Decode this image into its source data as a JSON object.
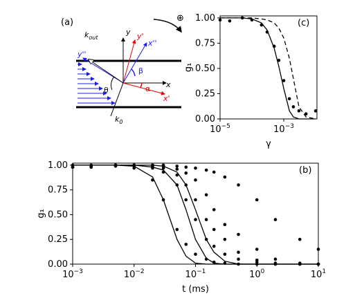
{
  "diagram": {
    "labels": {
      "panel": "(a)",
      "k_out": "k",
      "k_out_sub": "out",
      "y": "y",
      "y1": "y'",
      "y2": "y''",
      "x": "x",
      "x1": "x'",
      "x2": "x''",
      "alpha": "α",
      "beta": "β",
      "theta": "θ",
      "k_in": "k",
      "k_in_sub": "0",
      "oplus": "⊕"
    }
  },
  "chart_data": [
    {
      "type": "scatter-line",
      "panel": "(c)",
      "ylabel": "g₁",
      "xlabel": "γ",
      "xlog": true,
      "xlim": [
        1e-05,
        0.011
      ],
      "ylim": [
        0,
        1.02
      ],
      "xticks": [
        {
          "value": 1e-05,
          "label": "10",
          "exponent": "−5"
        },
        {
          "value": 0.001,
          "label": "10",
          "exponent": "−3"
        }
      ],
      "yticks": [
        {
          "value": 0,
          "label": "0.00"
        },
        {
          "value": 0.25,
          "label": "0.25"
        },
        {
          "value": 0.5,
          "label": "0.50"
        },
        {
          "value": 0.75,
          "label": "0.75"
        },
        {
          "value": 1,
          "label": "1.00"
        }
      ],
      "x": [
        1e-05,
        2e-05,
        5e-05,
        0.0001,
        0.0002,
        0.0003,
        0.0005,
        0.0007,
        0.001,
        0.0015,
        0.002,
        0.003,
        0.005,
        0.01
      ],
      "series": [
        {
          "mode": "markers",
          "color": "#000000",
          "values": [
            0.98,
            0.97,
            1.0,
            0.98,
            0.93,
            0.86,
            0.72,
            0.58,
            0.38,
            0.2,
            0.12,
            0.08,
            0.05,
            0.08
          ]
        },
        {
          "mode": "line",
          "linestyle": "solid",
          "color": "#000000",
          "values": [
            1,
            1,
            1,
            0.99,
            0.95,
            0.88,
            0.7,
            0.52,
            0.3,
            0.08,
            0.02,
            0,
            0,
            0
          ]
        },
        {
          "mode": "line",
          "linestyle": "dashed",
          "color": "#000000",
          "values": [
            1,
            1,
            1,
            1,
            0.99,
            0.98,
            0.95,
            0.9,
            0.8,
            0.6,
            0.4,
            0.12,
            0.02,
            0
          ]
        }
      ]
    },
    {
      "type": "scatter-line",
      "panel": "(b)",
      "ylabel": "g₁",
      "xlabel": "t (ms)",
      "xlog": true,
      "xlim": [
        0.001,
        10
      ],
      "ylim": [
        0,
        1.02
      ],
      "xticks": [
        {
          "value": 0.001,
          "label": "10",
          "exponent": "−3"
        },
        {
          "value": 0.01,
          "label": "10",
          "exponent": "−2"
        },
        {
          "value": 0.1,
          "label": "10",
          "exponent": "−1"
        },
        {
          "value": 1,
          "label": "10",
          "exponent": "0"
        },
        {
          "value": 10,
          "label": "10",
          "exponent": "1"
        }
      ],
      "yticks": [
        {
          "value": 0,
          "label": "0.00"
        },
        {
          "value": 0.25,
          "label": "0.25"
        },
        {
          "value": 0.5,
          "label": "0.50"
        },
        {
          "value": 0.75,
          "label": "0.75"
        },
        {
          "value": 1,
          "label": "1.00"
        }
      ],
      "x": [
        0.001,
        0.002,
        0.005,
        0.01,
        0.02,
        0.03,
        0.05,
        0.07,
        0.1,
        0.15,
        0.2,
        0.3,
        0.5,
        1,
        2,
        5,
        10
      ],
      "series": [
        {
          "mode": "markers",
          "color": "#000000",
          "values": [
            0.98,
            0.98,
            0.99,
            0.97,
            0.85,
            0.65,
            0.35,
            0.2,
            0.1,
            0.05,
            0.02,
            0.01,
            0,
            0,
            0,
            0,
            0
          ]
        },
        {
          "mode": "line",
          "linestyle": "solid",
          "color": "#000000",
          "values": [
            1,
            1,
            1,
            0.99,
            0.88,
            0.65,
            0.25,
            0.08,
            0.01,
            0,
            0,
            0,
            0,
            0,
            0,
            0,
            0
          ]
        },
        {
          "mode": "markers",
          "color": "#000000",
          "values": [
            0.98,
            0.99,
            1.0,
            0.99,
            0.97,
            0.93,
            0.8,
            0.65,
            0.45,
            0.25,
            0.18,
            0.1,
            0.05,
            0.02,
            0,
            0,
            0
          ]
        },
        {
          "mode": "line",
          "linestyle": "solid",
          "color": "#000000",
          "values": [
            1,
            1,
            1,
            1,
            0.98,
            0.95,
            0.8,
            0.55,
            0.25,
            0.06,
            0.01,
            0,
            0,
            0,
            0,
            0,
            0
          ]
        },
        {
          "mode": "markers",
          "color": "#000000",
          "values": [
            0.98,
            0.98,
            1,
            1,
            0.99,
            0.97,
            0.9,
            0.8,
            0.65,
            0.45,
            0.35,
            0.25,
            0.12,
            0.04,
            0.01,
            0,
            0
          ]
        },
        {
          "mode": "line",
          "linestyle": "solid",
          "color": "#000000",
          "values": [
            1,
            1,
            1,
            1,
            1,
            0.99,
            0.93,
            0.8,
            0.55,
            0.25,
            0.12,
            0.03,
            0,
            0,
            0,
            0,
            0
          ]
        },
        {
          "mode": "markers",
          "color": "#000000",
          "values": [
            1,
            1,
            1,
            1,
            1,
            0.99,
            0.96,
            0.92,
            0.85,
            0.7,
            0.55,
            0.4,
            0.3,
            0.15,
            0.05,
            0.01,
            0
          ]
        },
        {
          "mode": "markers",
          "color": "#000000",
          "values": [
            0.98,
            0.99,
            1,
            1,
            1,
            1,
            0.99,
            0.98,
            0.97,
            0.95,
            0.93,
            0.88,
            0.8,
            0.65,
            0.45,
            0.25,
            0.15
          ]
        }
      ]
    }
  ]
}
